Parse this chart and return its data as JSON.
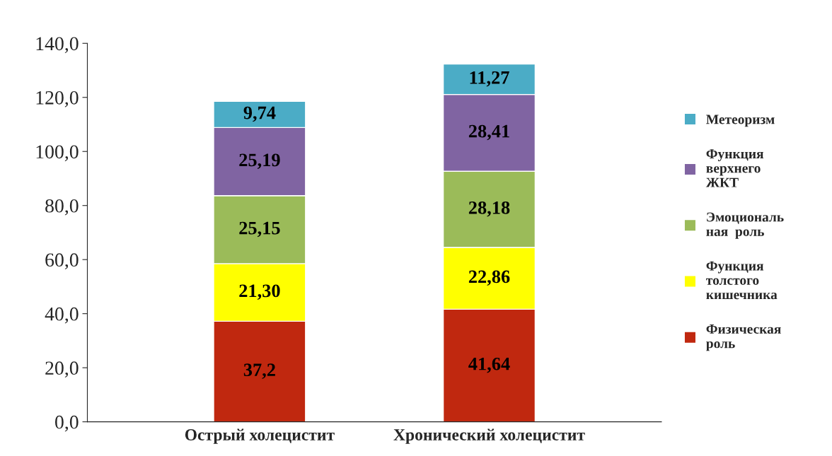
{
  "chart_data": {
    "type": "bar",
    "stacked": true,
    "categories": [
      "Острый холецистит",
      "Хронический холецистит"
    ],
    "series": [
      {
        "name": "Физическая\nроль",
        "color": "#c0280f",
        "values": [
          37.2,
          41.64
        ],
        "value_labels": [
          "37,2",
          "41,64"
        ]
      },
      {
        "name": "Функция\nтолстого\nкишечника",
        "color": "#ffff00",
        "values": [
          21.3,
          22.86
        ],
        "value_labels": [
          "21,30",
          "22,86"
        ]
      },
      {
        "name": "Эмоциональ\nная  роль",
        "color": "#9bbb59",
        "values": [
          25.15,
          28.18
        ],
        "value_labels": [
          "25,15",
          "28,18"
        ]
      },
      {
        "name": "Функция\nверхнего\nЖКТ",
        "color": "#8064a2",
        "values": [
          25.19,
          28.41
        ],
        "value_labels": [
          "25,19",
          "28,41"
        ]
      },
      {
        "name": "Метеоризм",
        "color": "#4bacc6",
        "values": [
          9.74,
          11.27
        ],
        "value_labels": [
          "9,74",
          "11,27"
        ]
      }
    ],
    "ylim": [
      0,
      140
    ],
    "yticks": [
      {
        "value": 0,
        "label": "0,0"
      },
      {
        "value": 20,
        "label": "20,0"
      },
      {
        "value": 40,
        "label": "40,0"
      },
      {
        "value": 60,
        "label": "60,0"
      },
      {
        "value": 80,
        "label": "80,0"
      },
      {
        "value": 100,
        "label": "100,0"
      },
      {
        "value": 120,
        "label": "120,0"
      },
      {
        "value": 140,
        "label": "140,0"
      }
    ],
    "grid": false,
    "legend": "right"
  }
}
